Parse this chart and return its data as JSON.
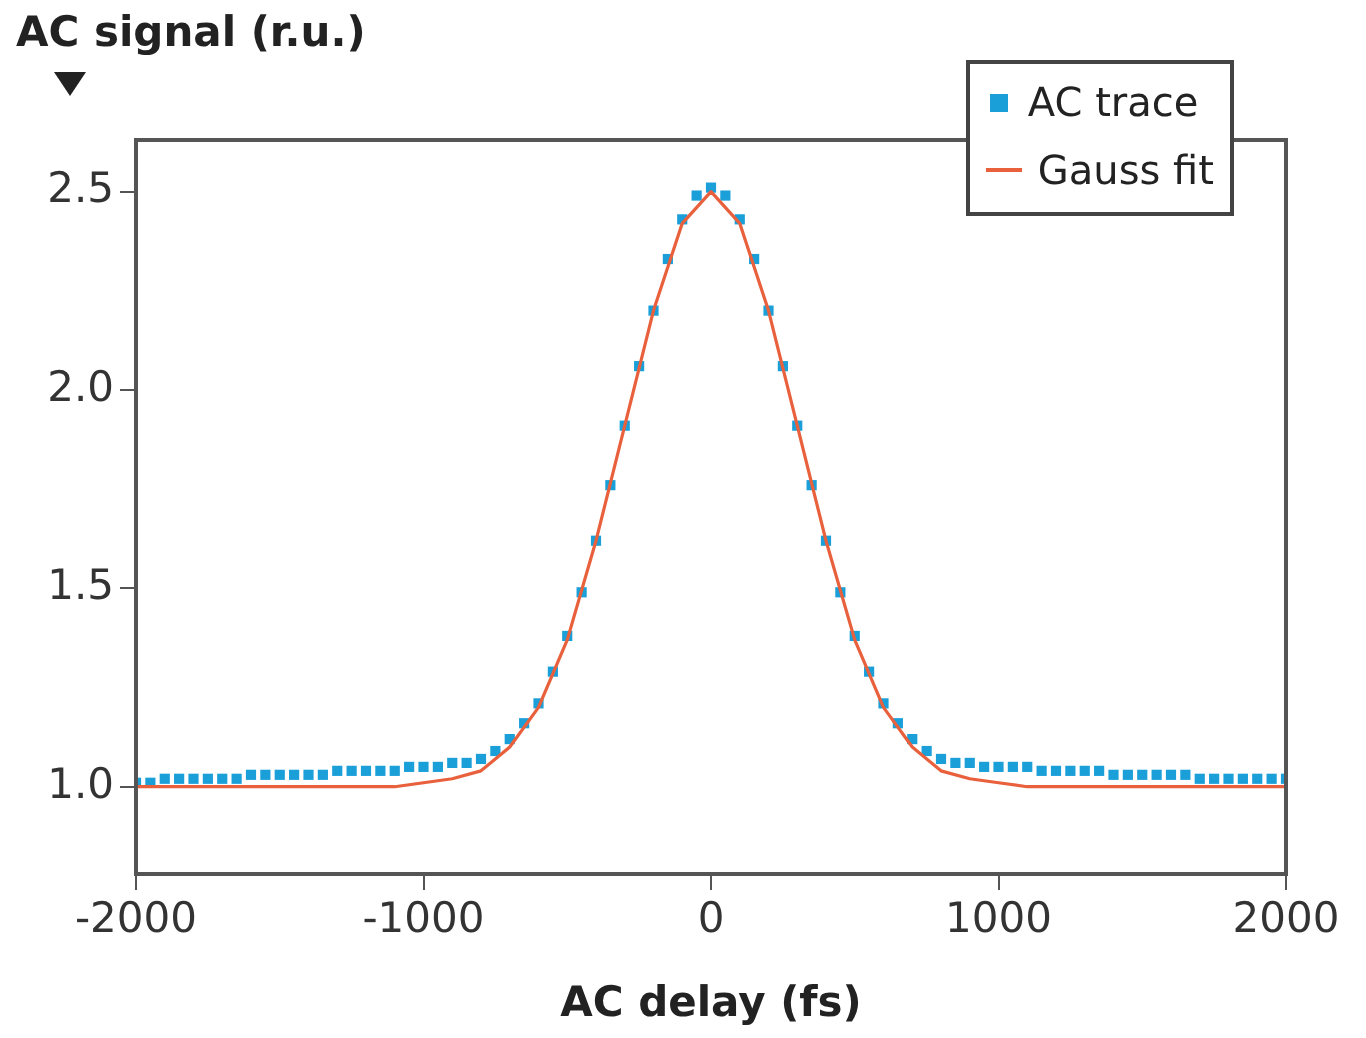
{
  "chart_data": {
    "type": "scatter",
    "xlabel": "AC delay (fs)",
    "ylabel": "AC signal (r.u.)",
    "xlim": [
      -2000,
      2000
    ],
    "xticks": [
      -2000,
      -1000,
      0,
      1000,
      2000
    ],
    "ylim": [
      0.78,
      2.63
    ],
    "yticks": [
      {
        "value": 1,
        "label": "1.0"
      },
      {
        "value": 1.5,
        "label": "1.5"
      },
      {
        "value": 2,
        "label": "2.0"
      },
      {
        "value": 2.5,
        "label": "2.5"
      }
    ],
    "legend": "top right",
    "series": [
      {
        "name": "AC trace",
        "marker": "square",
        "color": "#1a9fd9",
        "x": [
          -2000,
          -1950,
          -1900,
          -1850,
          -1800,
          -1750,
          -1700,
          -1650,
          -1600,
          -1550,
          -1500,
          -1450,
          -1400,
          -1350,
          -1300,
          -1250,
          -1200,
          -1150,
          -1100,
          -1050,
          -1000,
          -950,
          -900,
          -850,
          -800,
          -750,
          -700,
          -650,
          -600,
          -550,
          -500,
          -450,
          -400,
          -350,
          -300,
          -250,
          -200,
          -150,
          -100,
          -50,
          0,
          50,
          100,
          150,
          200,
          250,
          300,
          350,
          400,
          450,
          500,
          550,
          600,
          650,
          700,
          750,
          800,
          850,
          900,
          950,
          1000,
          1050,
          1100,
          1150,
          1200,
          1250,
          1300,
          1350,
          1400,
          1450,
          1500,
          1550,
          1600,
          1650,
          1700,
          1750,
          1800,
          1850,
          1900,
          1950,
          2000
        ],
        "values": [
          1.01,
          1.01,
          1.02,
          1.02,
          1.02,
          1.02,
          1.02,
          1.02,
          1.03,
          1.03,
          1.03,
          1.03,
          1.03,
          1.03,
          1.04,
          1.04,
          1.04,
          1.04,
          1.04,
          1.05,
          1.05,
          1.05,
          1.06,
          1.06,
          1.07,
          1.09,
          1.12,
          1.16,
          1.21,
          1.29,
          1.38,
          1.49,
          1.62,
          1.76,
          1.91,
          2.06,
          2.2,
          2.33,
          2.43,
          2.49,
          2.51,
          2.49,
          2.43,
          2.33,
          2.2,
          2.06,
          1.91,
          1.76,
          1.62,
          1.49,
          1.38,
          1.29,
          1.21,
          1.16,
          1.12,
          1.09,
          1.07,
          1.06,
          1.06,
          1.05,
          1.05,
          1.05,
          1.05,
          1.04,
          1.04,
          1.04,
          1.04,
          1.04,
          1.03,
          1.03,
          1.03,
          1.03,
          1.03,
          1.03,
          1.02,
          1.02,
          1.02,
          1.02,
          1.02,
          1.02,
          1.02
        ]
      },
      {
        "name": "Gauss fit",
        "type": "line",
        "marker": "none",
        "line_style": "solid",
        "color": "#e8603c",
        "x": [
          -2000,
          -1900,
          -1800,
          -1700,
          -1600,
          -1500,
          -1400,
          -1300,
          -1200,
          -1100,
          -1000,
          -900,
          -800,
          -700,
          -600,
          -500,
          -400,
          -300,
          -200,
          -100,
          0,
          100,
          200,
          300,
          400,
          500,
          600,
          700,
          800,
          900,
          1000,
          1100,
          1200,
          1300,
          1400,
          1500,
          1600,
          1700,
          1800,
          1900,
          2000
        ],
        "values": [
          1,
          1,
          1,
          1,
          1,
          1,
          1,
          1,
          1,
          1,
          1.01,
          1.02,
          1.04,
          1.1,
          1.2,
          1.37,
          1.62,
          1.91,
          2.2,
          2.42,
          2.5,
          2.42,
          2.2,
          1.91,
          1.62,
          1.37,
          1.2,
          1.1,
          1.04,
          1.02,
          1.01,
          1,
          1,
          1,
          1,
          1,
          1,
          1,
          1,
          1,
          1
        ]
      }
    ]
  }
}
